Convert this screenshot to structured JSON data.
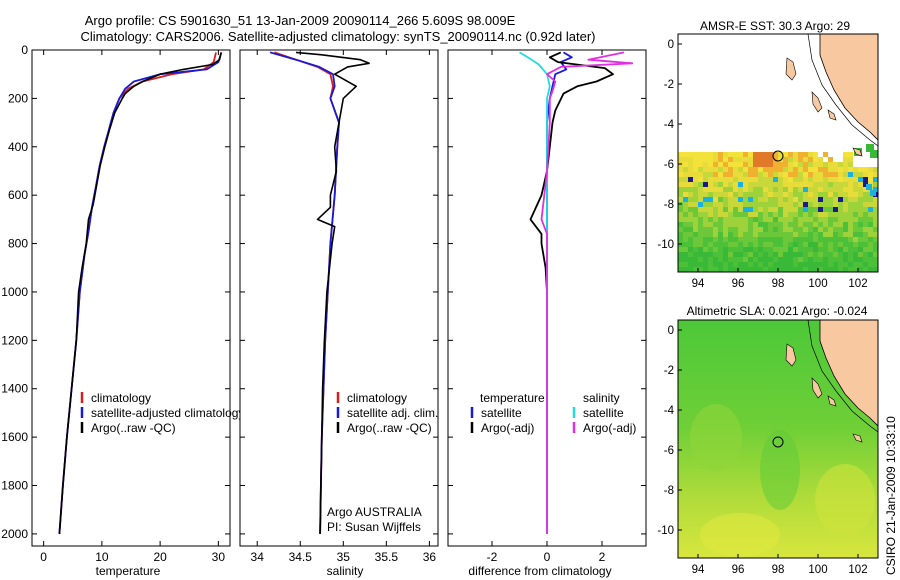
{
  "header": {
    "line1": "Argo profile: CS 5901630_51 13-Jan-2009 20090114_266 5.609S 98.009E",
    "line2": "Climatology: CARS2006. Satellite-adjusted climatology: synTS_20090114.nc (0.92d later)"
  },
  "chart_data": [
    {
      "type": "line",
      "xlabel": "temperature",
      "xlim": [
        -2,
        32
      ],
      "ylim": [
        0,
        2050
      ],
      "y_inverted": true,
      "xticks": [
        0,
        10,
        20,
        30
      ],
      "yticks": [
        0,
        200,
        400,
        600,
        800,
        1000,
        1200,
        1400,
        1600,
        1800,
        2000
      ],
      "legend": [
        "climatology",
        "satellite-adjusted climatology",
        "Argo(..raw -QC)"
      ],
      "series": [
        {
          "name": "climatology",
          "color": "#d62020",
          "points": [
            [
              29.6,
              10
            ],
            [
              29.2,
              50
            ],
            [
              27.5,
              80
            ],
            [
              22,
              100
            ],
            [
              17,
              130
            ],
            [
              14.5,
              160
            ],
            [
              13,
              200
            ],
            [
              12,
              260
            ],
            [
              11.2,
              330
            ],
            [
              10.4,
              400
            ],
            [
              9.6,
              480
            ],
            [
              9,
              560
            ],
            [
              8.3,
              650
            ],
            [
              7.7,
              750
            ],
            [
              7,
              850
            ],
            [
              6.2,
              1000
            ],
            [
              5.6,
              1200
            ],
            [
              4.8,
              1400
            ],
            [
              4,
              1600
            ],
            [
              3.3,
              1800
            ],
            [
              2.7,
              2000
            ]
          ]
        },
        {
          "name": "satellite-adjusted climatology",
          "color": "#1a1ad6",
          "points": [
            [
              30.5,
              10
            ],
            [
              30,
              50
            ],
            [
              28,
              80
            ],
            [
              20,
              100
            ],
            [
              15.5,
              130
            ],
            [
              14,
              160
            ],
            [
              13,
              200
            ],
            [
              12,
              260
            ],
            [
              11.2,
              330
            ],
            [
              10.4,
              400
            ],
            [
              9.6,
              480
            ],
            [
              9,
              560
            ],
            [
              8.3,
              650
            ],
            [
              7.7,
              750
            ],
            [
              7,
              850
            ],
            [
              6.2,
              1000
            ],
            [
              5.6,
              1200
            ],
            [
              4.8,
              1400
            ],
            [
              4,
              1600
            ],
            [
              3.3,
              1800
            ],
            [
              2.7,
              2000
            ]
          ]
        },
        {
          "name": "Argo(..raw -QC)",
          "color": "#000000",
          "points": [
            [
              30.5,
              10
            ],
            [
              30.2,
              40
            ],
            [
              29,
              60
            ],
            [
              24,
              80
            ],
            [
              20,
              100
            ],
            [
              17,
              130
            ],
            [
              15.5,
              150
            ],
            [
              14,
              180
            ],
            [
              13.5,
              200
            ],
            [
              12.2,
              260
            ],
            [
              11.3,
              330
            ],
            [
              10.5,
              400
            ],
            [
              9.7,
              480
            ],
            [
              9.1,
              560
            ],
            [
              8.5,
              640
            ],
            [
              7.7,
              700
            ],
            [
              7.3,
              800
            ],
            [
              6.6,
              900
            ],
            [
              6,
              1000
            ],
            [
              5.6,
              1200
            ],
            [
              4.8,
              1400
            ],
            [
              4,
              1600
            ],
            [
              3.3,
              1800
            ],
            [
              2.7,
              2000
            ]
          ]
        }
      ]
    },
    {
      "type": "line",
      "xlabel": "salinity",
      "xlim": [
        33.8,
        36.1
      ],
      "ylim": [
        0,
        2050
      ],
      "y_inverted": true,
      "xticks": [
        34,
        34.5,
        35,
        35.5,
        36
      ],
      "legend": [
        "climatology",
        "satellite adj. clim.",
        "Argo(..raw -QC)"
      ],
      "annotation": [
        "Argo AUSTRALIA",
        "PI: Susan Wijffels"
      ],
      "series": [
        {
          "name": "climatology",
          "color": "#d62020",
          "points": [
            [
              34.2,
              10
            ],
            [
              34.45,
              40
            ],
            [
              34.7,
              70
            ],
            [
              34.85,
              100
            ],
            [
              34.88,
              150
            ],
            [
              34.85,
              200
            ],
            [
              34.95,
              300
            ],
            [
              34.93,
              400
            ],
            [
              34.9,
              600
            ],
            [
              34.85,
              800
            ],
            [
              34.82,
              1000
            ],
            [
              34.79,
              1200
            ],
            [
              34.77,
              1400
            ],
            [
              34.75,
              1600
            ],
            [
              34.74,
              1800
            ],
            [
              34.73,
              2000
            ]
          ]
        },
        {
          "name": "satellite adj. clim.",
          "color": "#1a1ad6",
          "points": [
            [
              34.15,
              10
            ],
            [
              34.45,
              40
            ],
            [
              34.72,
              70
            ],
            [
              34.88,
              100
            ],
            [
              34.9,
              150
            ],
            [
              34.85,
              200
            ],
            [
              34.95,
              300
            ],
            [
              34.93,
              400
            ],
            [
              34.9,
              600
            ],
            [
              34.85,
              800
            ],
            [
              34.82,
              1000
            ],
            [
              34.79,
              1200
            ],
            [
              34.77,
              1400
            ],
            [
              34.75,
              1600
            ],
            [
              34.74,
              1800
            ],
            [
              34.73,
              2000
            ]
          ]
        },
        {
          "name": "Argo(..raw -QC)",
          "color": "#000000",
          "points": [
            [
              34.45,
              10
            ],
            [
              34.75,
              20
            ],
            [
              35.2,
              40
            ],
            [
              35.3,
              55
            ],
            [
              35.05,
              70
            ],
            [
              34.9,
              100
            ],
            [
              35.15,
              150
            ],
            [
              35.0,
              200
            ],
            [
              34.95,
              300
            ],
            [
              34.9,
              400
            ],
            [
              34.92,
              500
            ],
            [
              34.85,
              600
            ],
            [
              34.85,
              650
            ],
            [
              34.7,
              700
            ],
            [
              34.9,
              730
            ],
            [
              34.87,
              800
            ],
            [
              34.84,
              900
            ],
            [
              34.81,
              1000
            ],
            [
              34.78,
              1200
            ],
            [
              34.76,
              1400
            ],
            [
              34.75,
              1600
            ],
            [
              34.74,
              1800
            ],
            [
              34.73,
              2000
            ]
          ]
        }
      ]
    },
    {
      "type": "line",
      "xlabel": "difference from climatology",
      "xlim": [
        -3.6,
        3.6
      ],
      "ylim": [
        0,
        2050
      ],
      "y_inverted": true,
      "xticks": [
        -2,
        0,
        2
      ],
      "legend": {
        "temperature_label": "temperature",
        "salinity_label": "salinity",
        "entries": [
          "satellite",
          "Argo(-adj)",
          "satellite",
          "Argo(-adj)"
        ]
      },
      "series": [
        {
          "name": "satellite",
          "group": "temperature",
          "color": "#1a1ad6",
          "points": [
            [
              0.6,
              10
            ],
            [
              0.9,
              30
            ],
            [
              0.5,
              50
            ],
            [
              0.7,
              80
            ],
            [
              0.3,
              100
            ],
            [
              0.2,
              150
            ],
            [
              0.1,
              200
            ],
            [
              0,
              300
            ],
            [
              0,
              400
            ],
            [
              0,
              600
            ],
            [
              0,
              800
            ],
            [
              0,
              1000
            ],
            [
              0,
              1200
            ],
            [
              0,
              1400
            ],
            [
              0,
              1600
            ],
            [
              0,
              1800
            ],
            [
              0,
              2000
            ]
          ]
        },
        {
          "name": "Argo(-adj)",
          "group": "temperature",
          "color": "#000000",
          "points": [
            [
              0.5,
              10
            ],
            [
              0.1,
              30
            ],
            [
              0.4,
              50
            ],
            [
              2.1,
              75
            ],
            [
              2.4,
              100
            ],
            [
              1.8,
              130
            ],
            [
              1.1,
              150
            ],
            [
              0.6,
              180
            ],
            [
              0.3,
              250
            ],
            [
              0.2,
              300
            ],
            [
              0.1,
              400
            ],
            [
              0.0,
              500
            ],
            [
              -0.2,
              600
            ],
            [
              -0.6,
              700
            ],
            [
              -0.2,
              760
            ],
            [
              -0.2,
              800
            ],
            [
              -0.05,
              900
            ],
            [
              0,
              1000
            ],
            [
              0,
              1100
            ],
            [
              0,
              1200
            ],
            [
              0,
              1400
            ],
            [
              0,
              1600
            ],
            [
              0,
              1800
            ],
            [
              0,
              2000
            ]
          ]
        },
        {
          "name": "satellite",
          "group": "salinity",
          "color": "#22dddd",
          "points": [
            [
              -1.0,
              10
            ],
            [
              -0.7,
              30
            ],
            [
              -0.3,
              60
            ],
            [
              0.0,
              100
            ],
            [
              0.1,
              150
            ],
            [
              0.0,
              200
            ],
            [
              0,
              300
            ],
            [
              0,
              400
            ],
            [
              0,
              600
            ],
            [
              0,
              800
            ],
            [
              0,
              1000
            ],
            [
              0,
              1200
            ],
            [
              0,
              1400
            ],
            [
              0,
              1600
            ],
            [
              0,
              1800
            ],
            [
              0,
              2000
            ]
          ]
        },
        {
          "name": "Argo(-adj)",
          "group": "salinity",
          "color": "#e030e0",
          "points": [
            [
              2.8,
              10
            ],
            [
              1.5,
              40
            ],
            [
              3.1,
              55
            ],
            [
              0.5,
              70
            ],
            [
              0.0,
              100
            ],
            [
              0.3,
              130
            ],
            [
              0.2,
              170
            ],
            [
              0.1,
              200
            ],
            [
              0.1,
              300
            ],
            [
              0.05,
              400
            ],
            [
              0.0,
              500
            ],
            [
              -0.1,
              600
            ],
            [
              -0.2,
              700
            ],
            [
              0.0,
              760
            ],
            [
              0.0,
              800
            ],
            [
              0.0,
              1000
            ],
            [
              0,
              1200
            ],
            [
              0,
              1400
            ],
            [
              0,
              1600
            ],
            [
              0,
              1800
            ],
            [
              0,
              2000
            ]
          ]
        }
      ]
    },
    {
      "type": "heatmap",
      "title": "AMSR-E SST: 30.3  Argo: 29",
      "xticks": [
        94,
        96,
        98,
        100,
        102
      ],
      "yticks": [
        0,
        -2,
        -4,
        -6,
        -8,
        -10
      ],
      "xlim": [
        93,
        103
      ],
      "ylim": [
        -11.4,
        0.5
      ],
      "argo_position": [
        98.0,
        -5.6
      ],
      "colors": {
        "land": "#f8c8a0",
        "water_base": "#44c837"
      }
    },
    {
      "type": "heatmap",
      "title": "Altimetric SLA: 0.021  Argo: -0.024",
      "xticks": [
        94,
        96,
        98,
        100,
        102
      ],
      "yticks": [
        0,
        -2,
        -4,
        -6,
        -8,
        -10
      ],
      "xlim": [
        93,
        103
      ],
      "ylim": [
        -11.4,
        0.5
      ],
      "argo_position": [
        98.0,
        -5.6
      ],
      "colors": {
        "land": "#f8c8a0",
        "water_base": "#66cc33"
      }
    }
  ],
  "signature": "CSIRO  21-Jan-2009 10:33:10"
}
